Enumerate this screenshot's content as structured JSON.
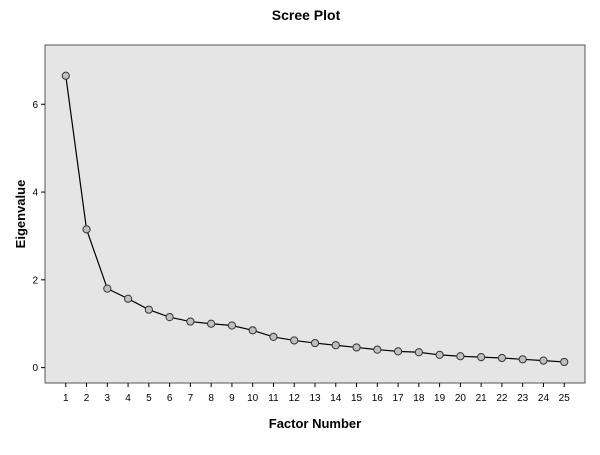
{
  "chart_data": {
    "type": "line",
    "title": "Scree Plot",
    "xlabel": "Factor Number",
    "ylabel": "Eigenvalue",
    "x": [
      1,
      2,
      3,
      4,
      5,
      6,
      7,
      8,
      9,
      10,
      11,
      12,
      13,
      14,
      15,
      16,
      17,
      18,
      19,
      20,
      21,
      22,
      23,
      24,
      25
    ],
    "y": [
      6.65,
      3.15,
      1.8,
      1.57,
      1.32,
      1.15,
      1.05,
      1.0,
      0.96,
      0.85,
      0.7,
      0.62,
      0.56,
      0.51,
      0.46,
      0.41,
      0.37,
      0.35,
      0.29,
      0.26,
      0.24,
      0.22,
      0.19,
      0.16,
      0.13
    ],
    "xticks": [
      "1",
      "2",
      "3",
      "4",
      "5",
      "6",
      "7",
      "8",
      "9",
      "10",
      "11",
      "12",
      "13",
      "14",
      "15",
      "16",
      "17",
      "18",
      "19",
      "20",
      "21",
      "22",
      "23",
      "24",
      "25"
    ],
    "yticks": [
      "0",
      "2",
      "4",
      "6"
    ],
    "ylim": [
      -0.35,
      7.35
    ],
    "xlim": [
      0,
      26
    ],
    "grid": false,
    "marker": "open-circle",
    "colors": {
      "plot_background": "#e5e5e5",
      "plot_border": "#555555",
      "line": "#000000",
      "marker_fill": "#bfbfbf",
      "marker_stroke": "#333333"
    }
  }
}
